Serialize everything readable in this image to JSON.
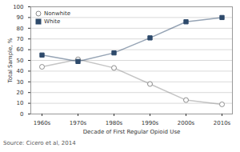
{
  "chart_data": {
    "type": "line",
    "categories": [
      "1960s",
      "1970s",
      "1980s",
      "1990s",
      "2000s",
      "2010s"
    ],
    "series": [
      {
        "name": "Nonwhite",
        "color": "#8c8c8c",
        "marker": "open circle",
        "values": [
          44,
          51,
          43,
          28,
          13,
          9
        ]
      },
      {
        "name": "White",
        "color": "#2e4a6b",
        "marker": "square",
        "values": [
          55,
          49,
          57,
          71,
          86,
          90
        ]
      }
    ],
    "x_label": "Decade of First Regular Opioid Use",
    "y_label": "Total Sample, %",
    "ylim": [
      0,
      100
    ],
    "yticks": [
      0,
      10,
      20,
      30,
      40,
      50,
      60,
      70,
      80,
      90,
      100
    ],
    "grid": true,
    "legend": "upper left",
    "annotations": [
      "Source: Cicero et al, 2014"
    ]
  }
}
